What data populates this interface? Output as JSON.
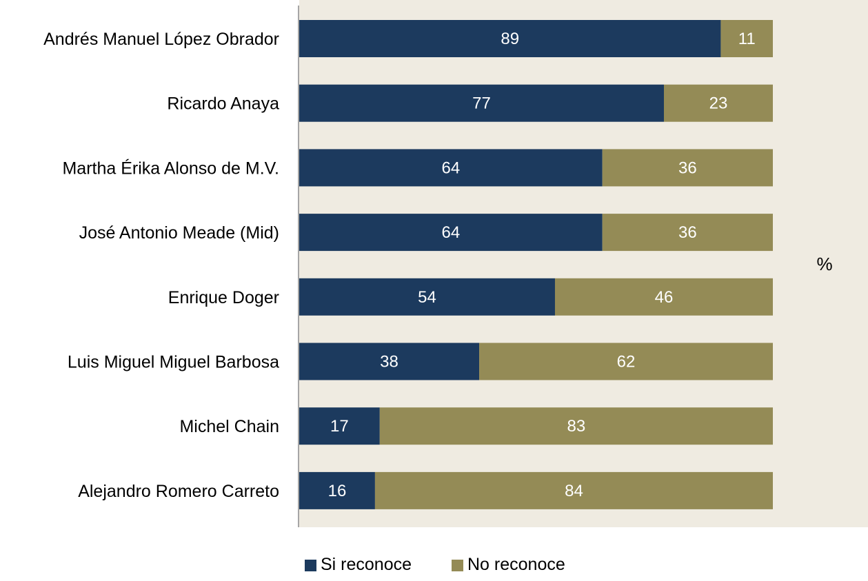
{
  "chart_data": {
    "type": "bar",
    "orientation": "horizontal",
    "stacked": true,
    "categories": [
      "Andrés Manuel López Obrador",
      "Ricardo Anaya",
      "Martha Érika Alonso de M.V.",
      "José Antonio Meade (Mid)",
      "Enrique Doger",
      "Luis Miguel Miguel Barbosa",
      "Michel Chain",
      "Alejandro Romero Carreto"
    ],
    "series": [
      {
        "name": "Si reconoce",
        "color": "#1c3a5e",
        "values": [
          89,
          77,
          64,
          64,
          54,
          38,
          17,
          16
        ]
      },
      {
        "name": "No reconoce",
        "color": "#948b56",
        "values": [
          11,
          23,
          36,
          36,
          46,
          62,
          83,
          84
        ]
      }
    ],
    "unit_label": "%",
    "xlim": [
      0,
      100
    ],
    "grid": false,
    "legend_position": "bottom",
    "plot_background": "#efebe1",
    "axis_color": "#a6a6a6",
    "data_label_color": "#ffffff"
  }
}
